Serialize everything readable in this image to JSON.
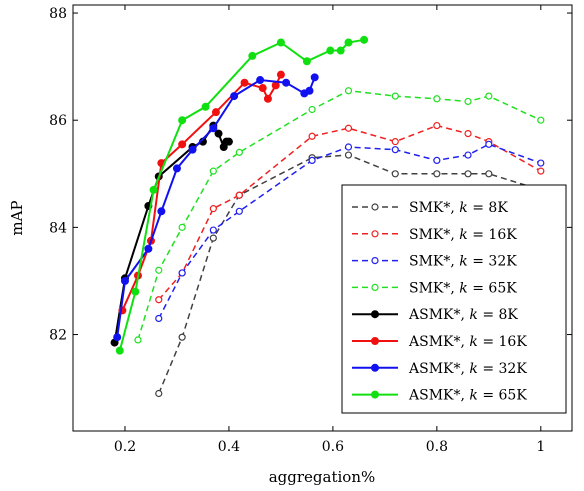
{
  "chart_data": {
    "type": "line",
    "xlabel": "aggregation%",
    "ylabel": "mAP",
    "xlim": [
      0.1,
      1.06
    ],
    "ylim": [
      80.2,
      88.15
    ],
    "xticks": [
      0.2,
      0.4,
      0.6,
      0.8,
      1
    ],
    "xtick_labels": [
      "0.2",
      "0.4",
      "0.6",
      "0.8",
      "1"
    ],
    "yticks": [
      82,
      84,
      86,
      88
    ],
    "ytick_labels": [
      "82",
      "84",
      "86",
      "88"
    ],
    "grid": false,
    "legend_position": "bottom-right",
    "series": [
      {
        "name": "SMK*, k = 8K",
        "color": "#404040",
        "style": "dashed",
        "marker": "open-circle",
        "x": [
          0.265,
          0.31,
          0.37,
          0.42,
          0.56,
          0.63,
          0.72,
          0.8,
          0.86,
          0.9,
          1.0
        ],
        "y": [
          80.9,
          81.95,
          83.8,
          84.6,
          85.3,
          85.35,
          85.0,
          85.0,
          85.0,
          85.0,
          84.7
        ]
      },
      {
        "name": "SMK*, k = 16K",
        "color": "#f02020",
        "style": "dashed",
        "marker": "open-circle",
        "x": [
          0.265,
          0.31,
          0.37,
          0.42,
          0.56,
          0.63,
          0.72,
          0.8,
          0.86,
          0.9,
          1.0
        ],
        "y": [
          82.65,
          83.15,
          84.35,
          84.6,
          85.7,
          85.85,
          85.6,
          85.9,
          85.75,
          85.6,
          85.05
        ]
      },
      {
        "name": "SMK*, k = 32K",
        "color": "#2020f0",
        "style": "dashed",
        "marker": "open-circle",
        "x": [
          0.265,
          0.31,
          0.37,
          0.42,
          0.56,
          0.63,
          0.72,
          0.8,
          0.86,
          0.9,
          1.0
        ],
        "y": [
          82.3,
          83.15,
          83.95,
          84.3,
          85.25,
          85.5,
          85.45,
          85.25,
          85.35,
          85.55,
          85.2
        ]
      },
      {
        "name": "SMK*, k = 65K",
        "color": "#20e020",
        "style": "dashed",
        "marker": "open-circle",
        "x": [
          0.225,
          0.265,
          0.31,
          0.37,
          0.42,
          0.56,
          0.63,
          0.72,
          0.8,
          0.86,
          0.9,
          1.0
        ],
        "y": [
          81.9,
          83.2,
          84.0,
          85.05,
          85.4,
          86.2,
          86.55,
          86.45,
          86.4,
          86.35,
          86.45,
          86.0
        ]
      },
      {
        "name": "ASMK*, k = 8K",
        "color": "#000000",
        "style": "solid",
        "marker": "filled-circle",
        "x": [
          0.18,
          0.2,
          0.245,
          0.265,
          0.33,
          0.35,
          0.37,
          0.38,
          0.39,
          0.395,
          0.4
        ],
        "y": [
          81.85,
          83.05,
          84.4,
          84.95,
          85.5,
          85.6,
          85.9,
          85.75,
          85.5,
          85.6,
          85.6
        ]
      },
      {
        "name": "ASMK*, k = 16K",
        "color": "#f01010",
        "style": "solid",
        "marker": "filled-circle",
        "x": [
          0.195,
          0.225,
          0.25,
          0.27,
          0.31,
          0.375,
          0.43,
          0.465,
          0.475,
          0.49,
          0.5
        ],
        "y": [
          82.45,
          83.1,
          83.75,
          85.2,
          85.55,
          86.15,
          86.7,
          86.6,
          86.4,
          86.65,
          86.85
        ]
      },
      {
        "name": "ASMK*, k = 32K",
        "color": "#1010f0",
        "style": "solid",
        "marker": "filled-circle",
        "x": [
          0.185,
          0.2,
          0.245,
          0.27,
          0.3,
          0.33,
          0.37,
          0.41,
          0.46,
          0.51,
          0.545,
          0.555,
          0.565
        ],
        "y": [
          81.95,
          83.0,
          83.6,
          84.3,
          85.1,
          85.45,
          85.85,
          86.45,
          86.75,
          86.7,
          86.5,
          86.55,
          86.8
        ]
      },
      {
        "name": "ASMK*, k = 65K",
        "color": "#10e010",
        "style": "solid",
        "marker": "filled-circle",
        "x": [
          0.19,
          0.22,
          0.255,
          0.31,
          0.355,
          0.445,
          0.5,
          0.55,
          0.595,
          0.615,
          0.63,
          0.66
        ],
        "y": [
          81.7,
          82.8,
          84.7,
          86.0,
          86.25,
          87.2,
          87.45,
          87.1,
          87.3,
          87.3,
          87.45,
          87.5
        ]
      }
    ]
  }
}
